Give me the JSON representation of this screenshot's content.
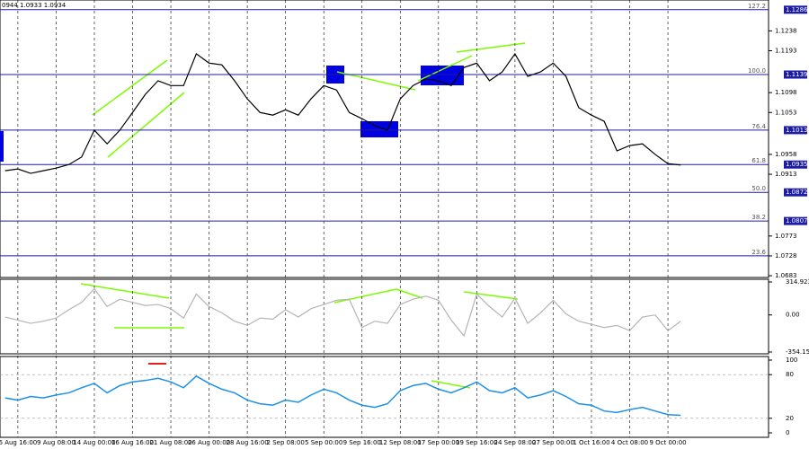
{
  "chart_data": {
    "type": "line",
    "header": "0944 1.0933 1.0934",
    "categories": [
      null,
      "6 Aug 16:00",
      null,
      null,
      "9 Aug 08:00",
      null,
      null,
      "14 Aug 00:00",
      null,
      null,
      "16 Aug 16:00",
      null,
      null,
      "21 Aug 08:00",
      null,
      null,
      "26 Aug 00:00",
      null,
      null,
      "28 Aug 16:00",
      null,
      null,
      "2 Sep 08:00",
      null,
      null,
      "5 Sep 00:00",
      null,
      null,
      "9 Sep 16:00",
      null,
      null,
      "12 Sep 08:00",
      null,
      null,
      "17 Sep 00:00",
      null,
      null,
      "19 Sep 16:00",
      null,
      null,
      "24 Sep 08:00",
      null,
      null,
      "27 Sep 00:00",
      null,
      null,
      "1 Oct 16:00",
      null,
      null,
      "4 Oct 08:00",
      null,
      null,
      "9 Oct 00:00",
      null
    ],
    "grid": true,
    "price": {
      "color": "#000000",
      "values": [
        1.0921,
        1.0925,
        1.0915,
        1.0921,
        1.0927,
        1.0935,
        1.0952,
        1.1013,
        1.0982,
        1.1013,
        1.1053,
        1.1094,
        1.1125,
        1.1114,
        1.1114,
        1.1186,
        1.1165,
        1.1161,
        1.1125,
        1.1084,
        1.1053,
        1.1047,
        1.1059,
        1.1047,
        1.1084,
        1.1114,
        1.1104,
        1.1053,
        1.1039,
        1.1023,
        1.1013,
        1.1084,
        1.1114,
        1.1129,
        1.1125,
        1.1114,
        1.1155,
        1.1165,
        1.1125,
        1.1145,
        1.1186,
        1.1135,
        1.1145,
        1.1165,
        1.1135,
        1.1064,
        1.1047,
        1.1033,
        1.0966,
        1.0978,
        1.0982,
        1.0958,
        1.0937,
        1.0934
      ],
      "ylim": [
        1.0679,
        1.1308
      ],
      "yticks": [
        1.1238,
        1.1193,
        1.1098,
        1.1053,
        1.0958,
        1.0913,
        1.0773,
        1.0728,
        1.0683
      ],
      "level_color": "#1c1ca6",
      "levels": [
        {
          "value": 1.1286,
          "label": "127.2"
        },
        {
          "value": 1.1139,
          "label": "100.0"
        },
        {
          "value": 1.1013,
          "label": "76.4"
        },
        {
          "value": 1.0935,
          "label": "61.8"
        },
        {
          "value": 1.0872,
          "label": "50.0"
        },
        {
          "value": 1.0807,
          "label": "38.2"
        }
      ],
      "extra_level": {
        "value": 1.0728,
        "label": "23.6"
      }
    },
    "cci": {
      "color": "#b4b4b4",
      "values": [
        -20,
        -50,
        -80,
        -60,
        -30,
        50,
        120,
        250,
        80,
        150,
        120,
        90,
        100,
        60,
        -30,
        200,
        80,
        20,
        -60,
        -100,
        -30,
        -40,
        50,
        -20,
        60,
        100,
        140,
        150,
        -120,
        -60,
        -80,
        100,
        150,
        180,
        140,
        -50,
        -200,
        200,
        80,
        -20,
        160,
        -80,
        20,
        140,
        10,
        -60,
        -90,
        -120,
        -100,
        -150,
        -20,
        0,
        -150,
        -60
      ],
      "ylim": [
        -354.159,
        314.9232
      ],
      "yticks": [
        314.9232,
        {
          "value": 0,
          "label": "0.00"
        },
        -354.159
      ]
    },
    "rsi": {
      "color": "#1e90e6",
      "values": [
        48,
        45,
        50,
        48,
        52,
        55,
        62,
        68,
        55,
        65,
        70,
        72,
        75,
        70,
        62,
        78,
        68,
        60,
        55,
        45,
        40,
        38,
        45,
        42,
        52,
        60,
        55,
        45,
        38,
        35,
        40,
        58,
        65,
        68,
        60,
        55,
        62,
        70,
        58,
        55,
        62,
        48,
        52,
        58,
        50,
        40,
        38,
        30,
        28,
        32,
        35,
        30,
        25,
        24
      ],
      "ylim": [
        0,
        100
      ],
      "yticks": [
        100,
        80,
        20,
        0
      ]
    }
  }
}
